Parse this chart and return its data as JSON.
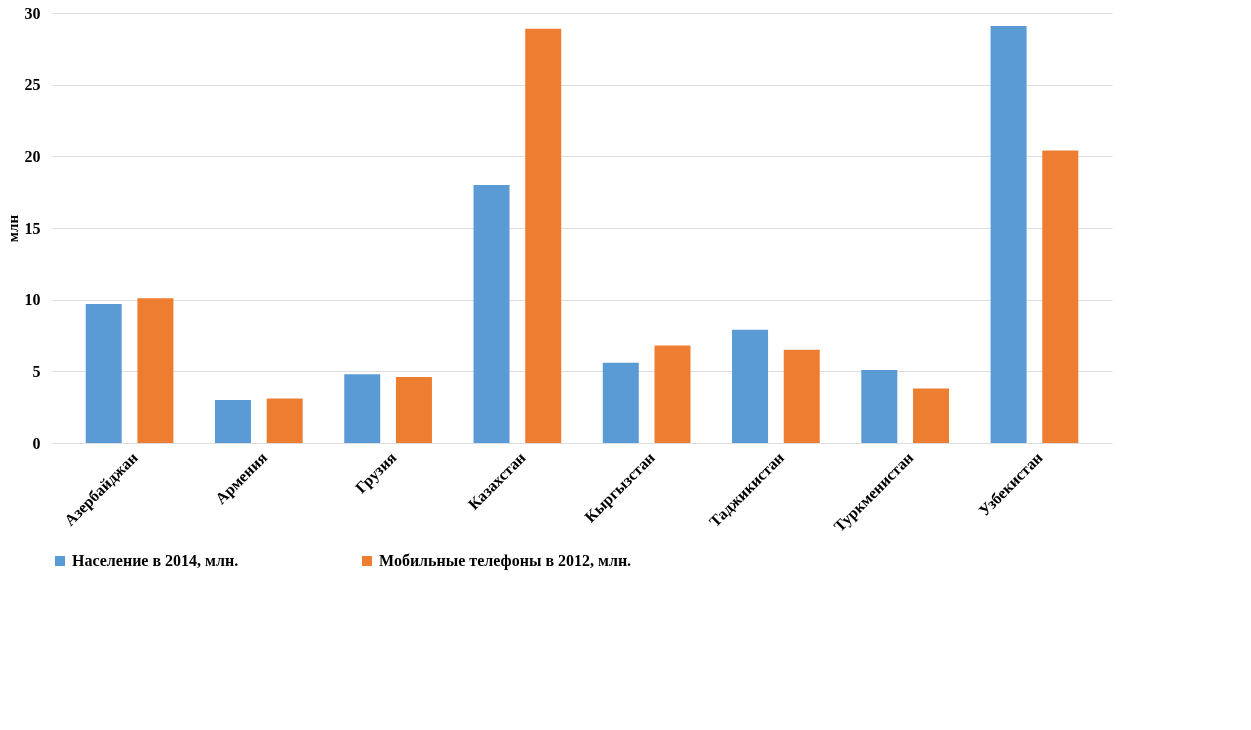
{
  "chart_data": {
    "type": "bar",
    "ylabel": "млн",
    "categories": [
      "Азербайджан",
      "Армения",
      "Грузия",
      "Казахстан",
      "Кыргызстан",
      "Таджикистан",
      "Туркменистан",
      "Узбекистан"
    ],
    "series": [
      {
        "name": "Население в 2014, млн.",
        "color": "#5b9bd5",
        "values": [
          9.7,
          3.0,
          4.8,
          18.0,
          5.6,
          7.9,
          5.1,
          29.1
        ]
      },
      {
        "name": "Мобильные телефоны в 2012, млн.",
        "color": "#ed7d31",
        "values": [
          10.1,
          3.1,
          4.6,
          28.9,
          6.8,
          6.5,
          3.8,
          20.4
        ]
      }
    ],
    "ylim": [
      0,
      30
    ],
    "yticks": [
      0,
      5,
      10,
      15,
      20,
      25,
      30
    ],
    "grid": "y",
    "legend": "bottom"
  }
}
